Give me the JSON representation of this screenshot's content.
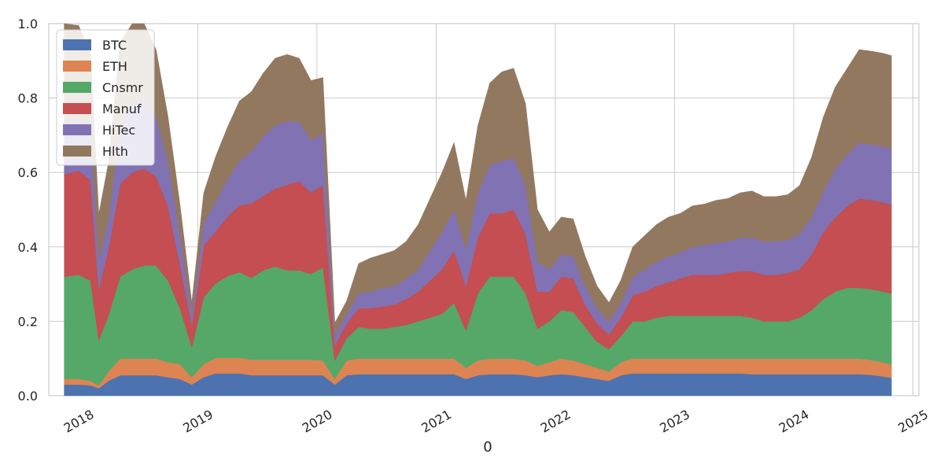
{
  "chart_data": {
    "type": "area",
    "stacked": true,
    "title": "",
    "xlabel": "0",
    "ylabel": "",
    "xlim": [
      2017.75,
      2025.05
    ],
    "ylim": [
      0,
      1.0
    ],
    "grid": true,
    "legend_position": "top-left",
    "x_ticks": [
      {
        "value": 2018.0,
        "label": "2018"
      },
      {
        "value": 2019.0,
        "label": "2019"
      },
      {
        "value": 2020.0,
        "label": "2020"
      },
      {
        "value": 2021.0,
        "label": "2021"
      },
      {
        "value": 2022.0,
        "label": "2022"
      },
      {
        "value": 2023.0,
        "label": "2023"
      },
      {
        "value": 2024.0,
        "label": "2024"
      },
      {
        "value": 2025.0,
        "label": "2025"
      }
    ],
    "y_ticks": [
      {
        "value": 0.0,
        "label": "0.0"
      },
      {
        "value": 0.2,
        "label": "0.2"
      },
      {
        "value": 0.4,
        "label": "0.4"
      },
      {
        "value": 0.6,
        "label": "0.6"
      },
      {
        "value": 0.8,
        "label": "0.8"
      },
      {
        "value": 1.0,
        "label": "1.0"
      }
    ],
    "x": [
      2017.88,
      2018.0,
      2018.1,
      2018.17,
      2018.25,
      2018.35,
      2018.45,
      2018.55,
      2018.65,
      2018.75,
      2018.85,
      2018.95,
      2019.05,
      2019.15,
      2019.25,
      2019.35,
      2019.45,
      2019.55,
      2019.65,
      2019.75,
      2019.85,
      2019.95,
      2020.05,
      2020.15,
      2020.25,
      2020.35,
      2020.45,
      2020.55,
      2020.65,
      2020.75,
      2020.85,
      2020.95,
      2021.05,
      2021.15,
      2021.25,
      2021.35,
      2021.45,
      2021.55,
      2021.65,
      2021.75,
      2021.85,
      2021.95,
      2022.05,
      2022.15,
      2022.25,
      2022.35,
      2022.45,
      2022.55,
      2022.65,
      2022.75,
      2022.85,
      2022.95,
      2023.05,
      2023.15,
      2023.25,
      2023.35,
      2023.45,
      2023.55,
      2023.65,
      2023.75,
      2023.85,
      2023.95,
      2024.05,
      2024.15,
      2024.25,
      2024.35,
      2024.45,
      2024.55,
      2024.65,
      2024.75,
      2024.82
    ],
    "series": [
      {
        "name": "BTC",
        "color": "#4c72b0",
        "values": [
          0.03,
          0.03,
          0.028,
          0.02,
          0.04,
          0.055,
          0.055,
          0.055,
          0.055,
          0.05,
          0.045,
          0.03,
          0.05,
          0.06,
          0.06,
          0.06,
          0.055,
          0.055,
          0.055,
          0.055,
          0.055,
          0.055,
          0.055,
          0.03,
          0.055,
          0.058,
          0.058,
          0.058,
          0.058,
          0.058,
          0.058,
          0.058,
          0.058,
          0.058,
          0.045,
          0.055,
          0.058,
          0.058,
          0.058,
          0.055,
          0.05,
          0.055,
          0.058,
          0.055,
          0.05,
          0.045,
          0.04,
          0.055,
          0.06,
          0.06,
          0.06,
          0.06,
          0.06,
          0.06,
          0.06,
          0.06,
          0.06,
          0.06,
          0.058,
          0.058,
          0.058,
          0.058,
          0.058,
          0.058,
          0.058,
          0.058,
          0.058,
          0.058,
          0.056,
          0.052,
          0.048
        ]
      },
      {
        "name": "ETH",
        "color": "#dd8452",
        "values": [
          0.015,
          0.015,
          0.012,
          0.008,
          0.025,
          0.045,
          0.045,
          0.045,
          0.045,
          0.04,
          0.04,
          0.02,
          0.035,
          0.042,
          0.042,
          0.042,
          0.042,
          0.042,
          0.042,
          0.042,
          0.042,
          0.042,
          0.04,
          0.015,
          0.04,
          0.042,
          0.042,
          0.042,
          0.042,
          0.042,
          0.042,
          0.042,
          0.042,
          0.042,
          0.03,
          0.04,
          0.042,
          0.042,
          0.042,
          0.04,
          0.03,
          0.035,
          0.042,
          0.04,
          0.035,
          0.03,
          0.025,
          0.035,
          0.04,
          0.04,
          0.04,
          0.04,
          0.04,
          0.04,
          0.04,
          0.04,
          0.04,
          0.04,
          0.042,
          0.042,
          0.042,
          0.042,
          0.042,
          0.042,
          0.042,
          0.042,
          0.042,
          0.042,
          0.04,
          0.038,
          0.036
        ]
      },
      {
        "name": "Cnsmr",
        "color": "#55a868",
        "values": [
          0.275,
          0.28,
          0.27,
          0.12,
          0.15,
          0.22,
          0.24,
          0.25,
          0.25,
          0.22,
          0.15,
          0.08,
          0.18,
          0.2,
          0.22,
          0.23,
          0.22,
          0.24,
          0.25,
          0.24,
          0.24,
          0.23,
          0.25,
          0.05,
          0.06,
          0.085,
          0.08,
          0.08,
          0.085,
          0.09,
          0.1,
          0.11,
          0.12,
          0.15,
          0.1,
          0.18,
          0.22,
          0.22,
          0.22,
          0.18,
          0.1,
          0.11,
          0.13,
          0.13,
          0.1,
          0.07,
          0.06,
          0.07,
          0.1,
          0.1,
          0.11,
          0.115,
          0.115,
          0.115,
          0.115,
          0.115,
          0.115,
          0.115,
          0.11,
          0.1,
          0.1,
          0.1,
          0.11,
          0.13,
          0.16,
          0.18,
          0.19,
          0.19,
          0.19,
          0.19,
          0.19
        ]
      },
      {
        "name": "Manuf",
        "color": "#c44e52",
        "values": [
          0.275,
          0.28,
          0.27,
          0.14,
          0.18,
          0.25,
          0.26,
          0.26,
          0.24,
          0.2,
          0.12,
          0.06,
          0.14,
          0.14,
          0.16,
          0.18,
          0.2,
          0.2,
          0.21,
          0.23,
          0.24,
          0.22,
          0.22,
          0.04,
          0.04,
          0.05,
          0.055,
          0.06,
          0.06,
          0.07,
          0.08,
          0.1,
          0.12,
          0.14,
          0.12,
          0.15,
          0.17,
          0.17,
          0.18,
          0.16,
          0.1,
          0.08,
          0.09,
          0.09,
          0.06,
          0.05,
          0.04,
          0.05,
          0.07,
          0.08,
          0.085,
          0.09,
          0.1,
          0.11,
          0.11,
          0.11,
          0.115,
          0.12,
          0.125,
          0.125,
          0.125,
          0.13,
          0.13,
          0.15,
          0.18,
          0.2,
          0.22,
          0.24,
          0.24,
          0.24,
          0.24
        ]
      },
      {
        "name": "HiTec",
        "color": "#8172b3",
        "values": [
          0.14,
          0.14,
          0.14,
          0.08,
          0.08,
          0.16,
          0.18,
          0.18,
          0.16,
          0.12,
          0.08,
          0.03,
          0.06,
          0.08,
          0.1,
          0.12,
          0.14,
          0.16,
          0.17,
          0.17,
          0.16,
          0.14,
          0.14,
          0.03,
          0.025,
          0.04,
          0.045,
          0.05,
          0.05,
          0.055,
          0.06,
          0.08,
          0.1,
          0.11,
          0.1,
          0.12,
          0.13,
          0.14,
          0.14,
          0.13,
          0.08,
          0.06,
          0.06,
          0.06,
          0.05,
          0.04,
          0.035,
          0.04,
          0.05,
          0.06,
          0.065,
          0.07,
          0.07,
          0.075,
          0.08,
          0.085,
          0.085,
          0.09,
          0.09,
          0.09,
          0.09,
          0.09,
          0.095,
          0.1,
          0.11,
          0.13,
          0.14,
          0.15,
          0.15,
          0.15,
          0.15
        ]
      },
      {
        "name": "Hlth",
        "color": "#937860",
        "values": [
          0.265,
          0.25,
          0.2,
          0.12,
          0.15,
          0.22,
          0.22,
          0.21,
          0.18,
          0.12,
          0.08,
          0.03,
          0.08,
          0.12,
          0.14,
          0.16,
          0.16,
          0.17,
          0.18,
          0.18,
          0.17,
          0.16,
          0.15,
          0.03,
          0.035,
          0.08,
          0.09,
          0.09,
          0.095,
          0.1,
          0.12,
          0.14,
          0.16,
          0.18,
          0.13,
          0.18,
          0.22,
          0.24,
          0.24,
          0.22,
          0.14,
          0.1,
          0.1,
          0.1,
          0.08,
          0.06,
          0.05,
          0.06,
          0.08,
          0.09,
          0.1,
          0.105,
          0.105,
          0.11,
          0.11,
          0.115,
          0.115,
          0.12,
          0.125,
          0.12,
          0.12,
          0.12,
          0.13,
          0.16,
          0.2,
          0.22,
          0.23,
          0.25,
          0.25,
          0.25,
          0.25
        ]
      }
    ]
  }
}
